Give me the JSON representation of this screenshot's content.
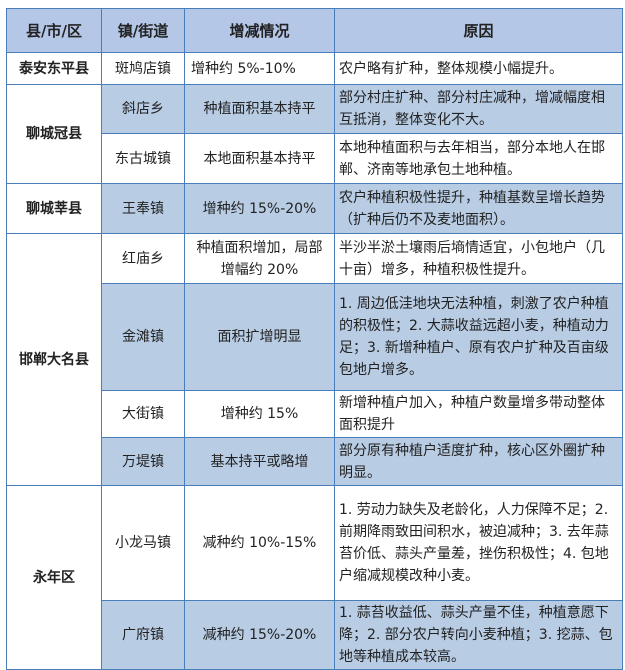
{
  "headers": [
    "县/市/区",
    "镇/街道",
    "增减情况",
    "原因"
  ],
  "rows": [
    {
      "county": "泰安东平县",
      "town": "斑鸠店镇",
      "change": "增种约 5%-10%",
      "reason": "农户略有扩种，整体规模小幅提升。"
    },
    {
      "county": "聊城冠县",
      "town": "斜店乡",
      "change": "种植面积基本持平",
      "reason": "部分村庄扩种、部分村庄减种，增减幅度相互抵消，整体变化不大。"
    },
    {
      "town": "东古城镇",
      "change": "本地面积基本持平",
      "reason": "本地种植面积与去年相当，部分本地人在邯郸、济南等地承包土地种植。"
    },
    {
      "county": "聊城莘县",
      "town": "王奉镇",
      "change": "增种约 15%-20%",
      "reason": "农户种植积极性提升，种植基数呈增长趋势（扩种后仍不及麦地面积）。"
    },
    {
      "county": "邯郸大名县",
      "town": "红庙乡",
      "change": "种植面积增加，局部增幅约 20%",
      "reason": "半沙半淤土壤雨后墒情适宜，小包地户（几十亩）增多，种植积极性提升。"
    },
    {
      "town": "金滩镇",
      "change": "面积扩增明显",
      "reason": "1. 周边低洼地块无法种植，刺激了农户种植的积极性；2. 大蒜收益远超小麦，种植动力足；3. 新增种植户、原有农户扩种及百亩级包地户增多。"
    },
    {
      "town": "大街镇",
      "change": "增种约 15%",
      "reason": "新增种植户加入，种植户数量增多带动整体面积提升"
    },
    {
      "town": "万堤镇",
      "change": "基本持平或略增",
      "reason": "部分原有种植户适度扩种，核心区外圈扩种明显。"
    },
    {
      "county": "永年区",
      "town": "小龙马镇",
      "change": "减种约 10%-15%",
      "reason": "1. 劳动力缺失及老龄化，人力保障不足；2. 前期降雨致田间积水，被迫减种；3. 去年蒜苔价低、蒜头产量差，挫伤积极性；4. 包地户缩减规模改种小麦。"
    },
    {
      "town": "广府镇",
      "change": "减种约 15%-20%",
      "reason": "1. 蒜苔收益低、蒜头产量不佳，种植意愿下降；2. 部分农户转向小麦种植；3. 挖蒜、包地等种植成本较高。"
    }
  ],
  "colors": {
    "header_bg": "#b4c7e7",
    "shade_bg": "#b8cce4",
    "border": "#4a7ebb"
  }
}
